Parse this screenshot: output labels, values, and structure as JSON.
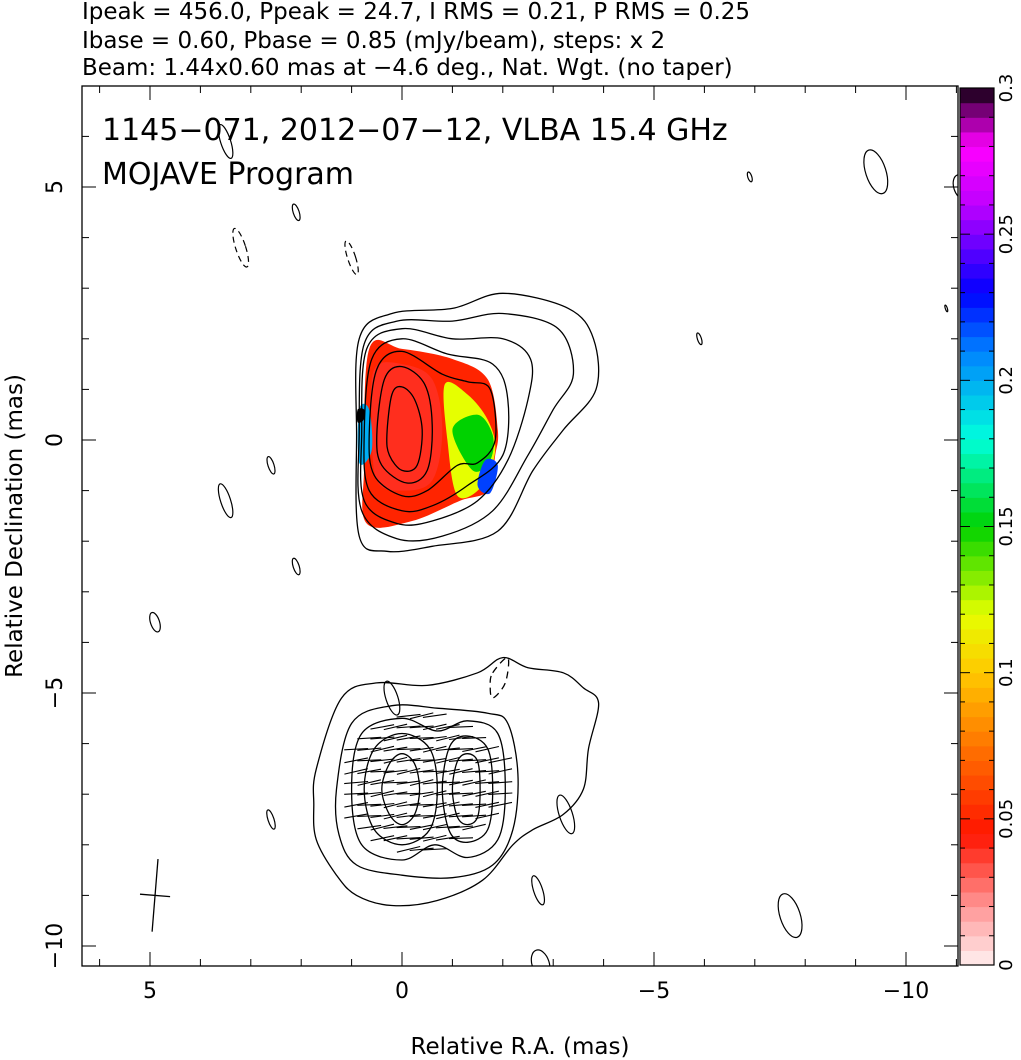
{
  "header_lines": [
    "Ipeak = 456.0, Ppeak = 24.7, I RMS = 0.21, P RMS = 0.25",
    "Ibase = 0.60, Pbase = 0.85 (mJy/beam), steps: x 2",
    "Beam: 1.44x0.60 mas at −4.6 deg., Nat. Wgt. (no taper)"
  ],
  "title_lines": [
    "1145−071, 2012−07−12, VLBA 15.4 GHz",
    "MOJAVE Program"
  ],
  "chart_data": {
    "type": "heatmap",
    "xlabel": "Relative R.A. (mas)",
    "ylabel": "Relative Declination (mas)",
    "xlim": [
      6.3,
      -11.2
    ],
    "ylim": [
      -10.5,
      7.0
    ],
    "x_ticks": [
      {
        "value": 5,
        "label": "5"
      },
      {
        "value": 0,
        "label": "0"
      },
      {
        "value": -5,
        "label": "−5"
      },
      {
        "value": -10,
        "label": "−10"
      }
    ],
    "y_ticks": [
      {
        "value": 5,
        "label": "5"
      },
      {
        "value": 0,
        "label": "0"
      },
      {
        "value": -5,
        "label": "−5"
      },
      {
        "value": -10,
        "label": "−10"
      }
    ],
    "colorbar": {
      "range": [
        0,
        0.3
      ],
      "ticks": [
        {
          "value": 0,
          "label": "0"
        },
        {
          "value": 0.05,
          "label": "0.05"
        },
        {
          "value": 0.1,
          "label": "0.1"
        },
        {
          "value": 0.15,
          "label": "0.15"
        },
        {
          "value": 0.2,
          "label": "0.2"
        },
        {
          "value": 0.25,
          "label": "0.25"
        },
        {
          "value": 0.3,
          "label": "0.3"
        }
      ]
    },
    "core": {
      "center": [
        0.0,
        0.3
      ],
      "contours": [
        [
          [
            0.3,
            0.1
          ],
          [
            0.2,
            0.9
          ],
          [
            0.0,
            1.05
          ],
          [
            -0.25,
            0.8
          ],
          [
            -0.4,
            0.2
          ],
          [
            -0.3,
            -0.5
          ],
          [
            0.0,
            -0.6
          ],
          [
            0.25,
            -0.3
          ]
        ],
        [
          [
            0.5,
            0.1
          ],
          [
            0.35,
            1.2
          ],
          [
            0.0,
            1.45
          ],
          [
            -0.45,
            1.1
          ],
          [
            -0.6,
            0.3
          ],
          [
            -0.5,
            -0.6
          ],
          [
            -0.1,
            -0.85
          ],
          [
            0.4,
            -0.5
          ]
        ],
        [
          [
            0.65,
            0.1
          ],
          [
            0.5,
            1.4
          ],
          [
            0.0,
            1.75
          ],
          [
            -0.8,
            1.3
          ],
          [
            -1.3,
            1.15
          ],
          [
            -1.75,
            1.0
          ],
          [
            -1.85,
            0.0
          ],
          [
            -1.5,
            -0.45
          ],
          [
            -1.1,
            -0.5
          ],
          [
            -0.5,
            -1.0
          ],
          [
            0.0,
            -1.1
          ],
          [
            0.55,
            -0.7
          ]
        ],
        [
          [
            0.75,
            0.1
          ],
          [
            0.6,
            1.6
          ],
          [
            0.0,
            2.0
          ],
          [
            -0.9,
            1.7
          ],
          [
            -1.8,
            1.5
          ],
          [
            -2.1,
            0.8
          ],
          [
            -2.0,
            -0.3
          ],
          [
            -1.3,
            -0.9
          ],
          [
            -0.6,
            -1.3
          ],
          [
            0.0,
            -1.4
          ],
          [
            0.65,
            -1.0
          ]
        ],
        [
          [
            0.8,
            0.1
          ],
          [
            0.7,
            1.8
          ],
          [
            0.0,
            2.2
          ],
          [
            -1.0,
            2.0
          ],
          [
            -2.0,
            2.0
          ],
          [
            -2.55,
            1.6
          ],
          [
            -2.5,
            0.8
          ],
          [
            -2.1,
            -0.4
          ],
          [
            -1.5,
            -1.2
          ],
          [
            -0.6,
            -1.6
          ],
          [
            0.1,
            -1.65
          ],
          [
            0.75,
            -1.2
          ]
        ],
        [
          [
            0.85,
            0.1
          ],
          [
            0.75,
            1.9
          ],
          [
            0.1,
            2.35
          ],
          [
            -1.0,
            2.35
          ],
          [
            -2.0,
            2.5
          ],
          [
            -3.1,
            2.2
          ],
          [
            -3.4,
            1.3
          ],
          [
            -3.0,
            0.6
          ],
          [
            -2.5,
            -0.3
          ],
          [
            -1.8,
            -1.4
          ],
          [
            -0.8,
            -1.9
          ],
          [
            0.1,
            -1.95
          ],
          [
            0.8,
            -1.4
          ]
        ],
        [
          [
            0.9,
            0.1
          ],
          [
            0.85,
            2.0
          ],
          [
            0.2,
            2.5
          ],
          [
            -1.0,
            2.6
          ],
          [
            -2.0,
            2.9
          ],
          [
            -3.3,
            2.6
          ],
          [
            -3.8,
            2.0
          ],
          [
            -3.85,
            1.0
          ],
          [
            -3.2,
            0.2
          ],
          [
            -2.6,
            -0.6
          ],
          [
            -1.9,
            -1.8
          ],
          [
            -0.6,
            -2.1
          ],
          [
            0.3,
            -2.2
          ],
          [
            0.85,
            -1.9
          ]
        ]
      ],
      "polarization_patches": [
        {
          "points": [
            [
              0.65,
              1.8
            ],
            [
              0.0,
              1.8
            ],
            [
              -1.0,
              1.6
            ],
            [
              -1.7,
              1.2
            ],
            [
              -1.9,
              0.2
            ],
            [
              -1.85,
              -0.3
            ],
            [
              -1.7,
              -1.0
            ],
            [
              -1.15,
              -1.2
            ],
            [
              -0.2,
              -1.6
            ],
            [
              0.7,
              -1.65
            ],
            [
              0.75,
              -0.5
            ]
          ],
          "fraction": 0.05
        },
        {
          "points": [
            [
              0.55,
              1.4
            ],
            [
              0.0,
              1.5
            ],
            [
              -0.6,
              1.2
            ],
            [
              -0.8,
              0.2
            ],
            [
              -0.6,
              -0.8
            ],
            [
              0.0,
              -1.0
            ],
            [
              0.5,
              -0.8
            ],
            [
              0.6,
              0.3
            ]
          ],
          "fraction": 0.04
        },
        {
          "points": [
            [
              -0.85,
              1.1
            ],
            [
              -1.3,
              0.9
            ],
            [
              -1.7,
              0.4
            ],
            [
              -1.85,
              -0.2
            ],
            [
              -1.6,
              -0.9
            ],
            [
              -1.1,
              -1.1
            ],
            [
              -0.9,
              0.0
            ]
          ],
          "fraction": 0.12
        },
        {
          "points": [
            [
              -1.0,
              0.2
            ],
            [
              -1.5,
              0.5
            ],
            [
              -1.8,
              0.1
            ],
            [
              -1.75,
              -0.4
            ],
            [
              -1.4,
              -0.6
            ]
          ],
          "fraction": 0.15
        },
        {
          "points": [
            [
              -1.65,
              -0.4
            ],
            [
              -1.9,
              -0.5
            ],
            [
              -1.75,
              -1.05
            ],
            [
              -1.5,
              -0.9
            ]
          ],
          "fraction": 0.22
        },
        {
          "points": [
            [
              0.85,
              0.6
            ],
            [
              0.65,
              0.6
            ],
            [
              0.6,
              -0.2
            ],
            [
              0.85,
              -0.45
            ]
          ],
          "fraction": 0.2
        },
        {
          "points": [
            [
              0.88,
              0.6
            ],
            [
              0.75,
              0.6
            ],
            [
              0.76,
              0.4
            ],
            [
              0.88,
              0.35
            ]
          ],
          "fraction": 0.3
        }
      ]
    },
    "ghost": {
      "contours": [
        [
          [
            0.4,
            -6.9
          ],
          [
            0.25,
            -6.4
          ],
          [
            0.0,
            -6.2
          ],
          [
            -0.25,
            -6.4
          ],
          [
            -0.35,
            -6.9
          ],
          [
            -0.25,
            -7.4
          ],
          [
            0.0,
            -7.6
          ],
          [
            0.25,
            -7.4
          ]
        ],
        [
          [
            0.75,
            -6.9
          ],
          [
            0.55,
            -6.1
          ],
          [
            0.0,
            -5.8
          ],
          [
            -0.55,
            -6.1
          ],
          [
            -0.7,
            -6.9
          ],
          [
            -0.55,
            -7.7
          ],
          [
            0.0,
            -8.0
          ],
          [
            0.55,
            -7.7
          ]
        ],
        [
          [
            -1.0,
            -6.9
          ],
          [
            -1.1,
            -6.35
          ],
          [
            -1.3,
            -6.2
          ],
          [
            -1.5,
            -6.35
          ],
          [
            -1.55,
            -6.9
          ],
          [
            -1.5,
            -7.45
          ],
          [
            -1.3,
            -7.6
          ],
          [
            -1.1,
            -7.45
          ]
        ],
        [
          [
            -0.8,
            -6.9
          ],
          [
            -0.95,
            -6.05
          ],
          [
            -1.3,
            -5.85
          ],
          [
            -1.7,
            -6.1
          ],
          [
            -1.8,
            -6.9
          ],
          [
            -1.7,
            -7.7
          ],
          [
            -1.3,
            -7.95
          ],
          [
            -0.95,
            -7.75
          ]
        ],
        [
          [
            1.0,
            -6.9
          ],
          [
            0.8,
            -5.8
          ],
          [
            0.0,
            -5.5
          ],
          [
            -0.7,
            -5.75
          ],
          [
            -1.3,
            -5.55
          ],
          [
            -1.9,
            -5.8
          ],
          [
            -2.05,
            -6.9
          ],
          [
            -1.9,
            -7.9
          ],
          [
            -1.3,
            -8.25
          ],
          [
            -0.65,
            -8.0
          ],
          [
            0.0,
            -8.3
          ],
          [
            0.8,
            -8.0
          ]
        ],
        [
          [
            1.3,
            -6.9
          ],
          [
            1.0,
            -5.6
          ],
          [
            0.2,
            -5.25
          ],
          [
            -0.7,
            -5.3
          ],
          [
            -1.7,
            -5.4
          ],
          [
            -2.1,
            -5.6
          ],
          [
            -2.3,
            -6.6
          ],
          [
            -2.2,
            -7.7
          ],
          [
            -1.8,
            -8.4
          ],
          [
            -1.0,
            -8.65
          ],
          [
            0.0,
            -8.6
          ],
          [
            0.9,
            -8.4
          ],
          [
            1.25,
            -7.8
          ]
        ],
        [
          [
            1.7,
            -6.5
          ],
          [
            1.2,
            -5.1
          ],
          [
            0.5,
            -4.8
          ],
          [
            -0.5,
            -4.85
          ],
          [
            -1.5,
            -4.6
          ],
          [
            -2.0,
            -4.3
          ],
          [
            -2.5,
            -4.5
          ],
          [
            -3.2,
            -4.6
          ],
          [
            -3.6,
            -4.9
          ],
          [
            -3.9,
            -5.2
          ],
          [
            -3.7,
            -6.1
          ],
          [
            -3.6,
            -6.9
          ],
          [
            -3.2,
            -7.4
          ],
          [
            -2.6,
            -7.7
          ],
          [
            -2.2,
            -8.0
          ],
          [
            -1.6,
            -8.7
          ],
          [
            -0.7,
            -9.1
          ],
          [
            0.2,
            -9.2
          ],
          [
            0.9,
            -9.0
          ],
          [
            1.3,
            -8.6
          ],
          [
            1.7,
            -7.9
          ],
          [
            1.75,
            -7.2
          ]
        ]
      ],
      "dashed_contours": [
        [
          [
            -1.8,
            -4.6
          ],
          [
            -2.1,
            -4.3
          ],
          [
            -2.05,
            -4.8
          ],
          [
            -1.8,
            -5.1
          ],
          [
            -1.75,
            -4.85
          ]
        ]
      ],
      "vectors_region": {
        "x": [
          -1.95,
          1.1
        ],
        "y": [
          -8.1,
          -5.45
        ]
      }
    },
    "noise_contours": [
      {
        "x": 3.5,
        "y": 5.9,
        "rx": 0.1,
        "ry": 0.35,
        "dashed": false
      },
      {
        "x": 2.1,
        "y": 4.5,
        "rx": 0.06,
        "ry": 0.17,
        "dashed": false
      },
      {
        "x": 3.2,
        "y": 3.8,
        "rx": 0.1,
        "ry": 0.4,
        "dashed": true
      },
      {
        "x": 1.0,
        "y": 3.6,
        "rx": 0.08,
        "ry": 0.35,
        "dashed": true
      },
      {
        "x": 2.6,
        "y": -0.5,
        "rx": 0.06,
        "ry": 0.18,
        "dashed": false
      },
      {
        "x": 3.5,
        "y": -1.2,
        "rx": 0.1,
        "ry": 0.35,
        "dashed": false
      },
      {
        "x": 2.1,
        "y": -2.5,
        "rx": 0.06,
        "ry": 0.17,
        "dashed": false
      },
      {
        "x": 4.9,
        "y": -3.6,
        "rx": 0.09,
        "ry": 0.2,
        "dashed": false
      },
      {
        "x": 0.2,
        "y": -5.1,
        "rx": 0.12,
        "ry": 0.35,
        "dashed": false
      },
      {
        "x": 2.6,
        "y": -7.5,
        "rx": 0.06,
        "ry": 0.2,
        "dashed": false
      },
      {
        "x": -3.25,
        "y": -7.4,
        "rx": 0.13,
        "ry": 0.4,
        "dashed": false
      },
      {
        "x": -2.7,
        "y": -8.9,
        "rx": 0.09,
        "ry": 0.3,
        "dashed": false
      },
      {
        "x": -5.9,
        "y": 2.0,
        "rx": 0.04,
        "ry": 0.12,
        "dashed": false
      },
      {
        "x": -6.9,
        "y": 5.2,
        "rx": 0.04,
        "ry": 0.1,
        "dashed": false
      },
      {
        "x": -9.4,
        "y": 5.3,
        "rx": 0.2,
        "ry": 0.45,
        "dashed": false
      },
      {
        "x": -7.7,
        "y": -9.4,
        "rx": 0.2,
        "ry": 0.45,
        "dashed": false
      },
      {
        "x": -10.8,
        "y": 2.6,
        "rx": 0.02,
        "ry": 0.07,
        "dashed": false
      },
      {
        "x": -11.1,
        "y": 5.0,
        "rx": 0.15,
        "ry": 0.25,
        "dashed": false
      },
      {
        "x": -2.75,
        "y": -10.35,
        "rx": 0.17,
        "ry": 0.28,
        "dashed": false
      }
    ],
    "beam": {
      "x": 4.9,
      "y": -9.0,
      "major_mas": 1.44,
      "minor_mas": 0.6,
      "pa_deg": -4.6
    }
  }
}
